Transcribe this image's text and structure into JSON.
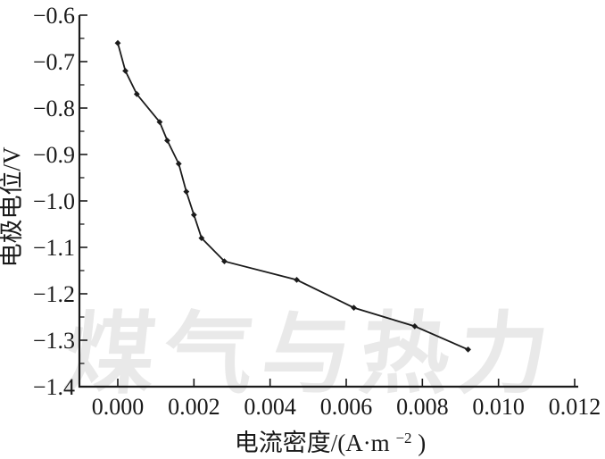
{
  "page": {
    "background": "#ffffff"
  },
  "watermark": {
    "text": "煤气与热力",
    "color": "#e9e9e9"
  },
  "chart_data": {
    "type": "line",
    "title": "",
    "xlabel": "电流密度/(A·m⁻²)",
    "xlabel_parts": {
      "pre": "电流密度/(A·m",
      "sup": "−2",
      "post": ")"
    },
    "ylabel": "电极电位/V",
    "xlim": [
      0,
      0.012
    ],
    "ylim": [
      -1.4,
      -0.6
    ],
    "grid": false,
    "legend": "none",
    "line_color": "#1b1b1b",
    "marker": "diamond",
    "x_tick_labels": [
      "0.000",
      "0.002",
      "0.004",
      "0.006",
      "0.008",
      "0.010",
      "0.012"
    ],
    "x_tick_values": [
      0,
      0.002,
      0.004,
      0.006,
      0.008,
      0.01,
      0.012
    ],
    "y_tick_labels": [
      "−0.6",
      "−0.7",
      "−0.8",
      "−0.9",
      "−1.0",
      "−1.1",
      "−1.2",
      "−1.3",
      "−1.4"
    ],
    "y_tick_values": [
      -0.6,
      -0.7,
      -0.8,
      -0.9,
      -1.0,
      -1.1,
      -1.2,
      -1.3,
      -1.4
    ],
    "y_minor_tick_values": [
      -0.65,
      -0.75,
      -0.85,
      -0.95,
      -1.05,
      -1.15,
      -1.25,
      -1.35
    ],
    "series": [
      {
        "name": "series-1",
        "x": [
          0.0,
          0.0002,
          0.0005,
          0.0011,
          0.0013,
          0.0016,
          0.0018,
          0.002,
          0.0022,
          0.0028,
          0.0047,
          0.0062,
          0.0078,
          0.0092
        ],
        "y": [
          -0.66,
          -0.72,
          -0.77,
          -0.83,
          -0.87,
          -0.92,
          -0.98,
          -1.03,
          -1.08,
          -1.13,
          -1.17,
          -1.23,
          -1.27,
          -1.32
        ]
      }
    ]
  }
}
